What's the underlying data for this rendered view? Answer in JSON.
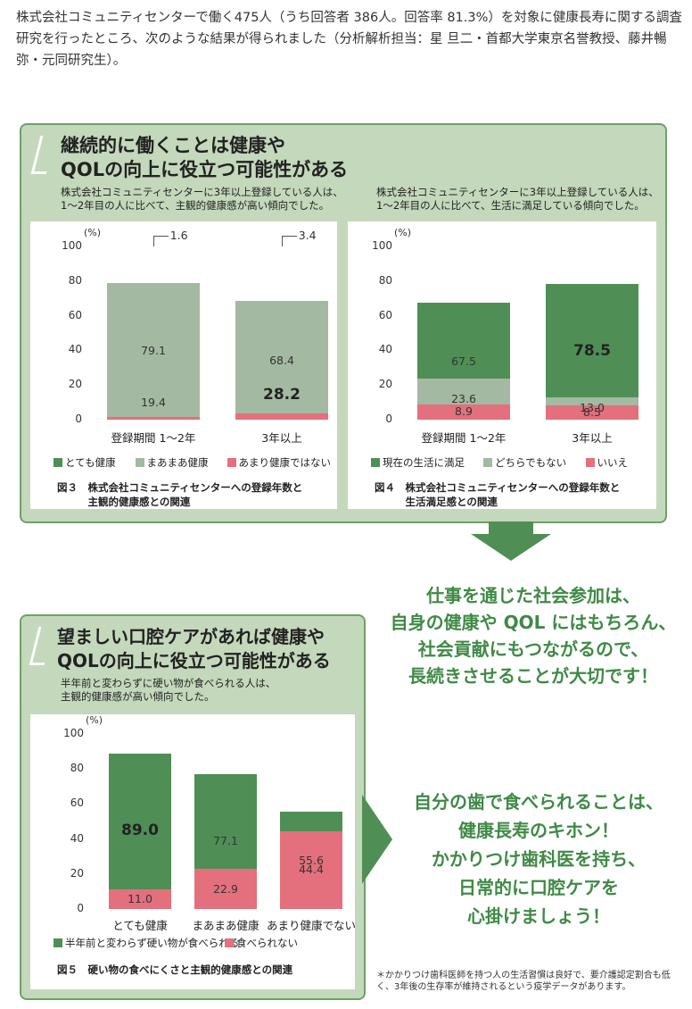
{
  "intro": "株式会社コミュニティセンターで働く475人（うち回答者 386人。回答率 81.3%）を対象に健康長寿に関する調査研究を行ったところ、次のような結果が得られました（分析解析担当：星 旦二・首都大学東京名誉教授、藤井暢弥・元同研究生）。",
  "panel1": {
    "heading_line1": "継続的に働くことは健康や",
    "heading_line2": "QOLの向上に役立つ可能性がある"
  },
  "panel2": {
    "heading_line1": "望ましい口腔ケアがあれば健康や",
    "heading_line2": "QOLの向上に役立つ可能性がある"
  },
  "colors": {
    "green": "#4f8f55",
    "gray": "#a4b9a1",
    "pink": "#e3707c",
    "accent_text": "#3f8a46"
  },
  "chart_data": [
    {
      "id": "fig3",
      "type": "bar",
      "stacked": true,
      "subtitle": "株式会社コミュニティセンターに3年以上登録している人は、\n1〜2年目の人に比べて、主観的健康感が高い傾向でした。",
      "caption": "図３　株式会社コミュニティセンターへの登録年数と\n　　　主観的健康感との関連",
      "unit": "(%)",
      "categories": [
        "登録期間 1〜2年",
        "3年以上"
      ],
      "ylim": [
        0,
        100
      ],
      "yticks": [
        0,
        20,
        40,
        60,
        80,
        100
      ],
      "series": [
        {
          "name": "とても健康",
          "color": "#4f8f55",
          "values": [
            19.4,
            28.2
          ]
        },
        {
          "name": "まあまあ健康",
          "color": "#a4b9a1",
          "values": [
            79.1,
            68.4
          ]
        },
        {
          "name": "あまり健康ではない",
          "color": "#e3707c",
          "values": [
            1.6,
            3.4
          ]
        }
      ],
      "emphasis": [
        [
          false,
          true
        ],
        [
          false,
          false
        ],
        [
          false,
          false
        ]
      ],
      "callout_series": 2
    },
    {
      "id": "fig4",
      "type": "bar",
      "stacked": true,
      "subtitle": "株式会社コミュニティセンターに3年以上登録している人は、\n1〜2年目の人に比べて、生活に満足している傾向でした。",
      "caption": "図４　株式会社コミュニティセンターへの登録年数と\n　　　生活満足感との関連",
      "unit": "(%)",
      "categories": [
        "登録期間 1〜2年",
        "3年以上"
      ],
      "ylim": [
        0,
        100
      ],
      "yticks": [
        0,
        20,
        40,
        60,
        80,
        100
      ],
      "series": [
        {
          "name": "現在の生活に満足",
          "color": "#4f8f55",
          "values": [
            67.5,
            78.5
          ]
        },
        {
          "name": "どちらでもない",
          "color": "#a4b9a1",
          "values": [
            23.6,
            13.0
          ]
        },
        {
          "name": "いいえ",
          "color": "#e3707c",
          "values": [
            8.9,
            8.5
          ]
        }
      ],
      "emphasis": [
        [
          false,
          true
        ],
        [
          false,
          false
        ],
        [
          false,
          false
        ]
      ],
      "callout_series": -1
    },
    {
      "id": "fig5",
      "type": "bar",
      "stacked": true,
      "subtitle": "半年前と変わらずに硬い物が食べられる人は、\n主観的健康感が高い傾向でした。",
      "caption": "図５　硬い物の食べにくさと主観的健康感との関連",
      "unit": "(%)",
      "categories": [
        "とても健康",
        "まあまあ健康",
        "あまり健康でない"
      ],
      "ylim": [
        0,
        100
      ],
      "yticks": [
        0,
        20,
        40,
        60,
        80,
        100
      ],
      "series": [
        {
          "name": "半年前と変わらず硬い物が食べられる",
          "color": "#4f8f55",
          "values": [
            89.0,
            77.1,
            55.6
          ]
        },
        {
          "name": "食べられない",
          "color": "#e3707c",
          "values": [
            11.0,
            22.9,
            44.4
          ]
        }
      ],
      "emphasis": [
        [
          true,
          false,
          false
        ],
        [
          false,
          false,
          false
        ]
      ],
      "callout_series": -1
    }
  ],
  "message1": [
    "仕事を通じた社会参加は、",
    "自身の健康や QOL にはもちろん、",
    "社会貢献にもつながるので、",
    "長続きさせることが大切です！"
  ],
  "message2": [
    "自分の歯で食べられることは、",
    "健康長寿のキホン！",
    "かかりつけ歯科医を持ち、",
    "日常的に口腔ケアを",
    "心掛けましょう！"
  ],
  "footnote": "＊かかりつけ歯科医師を持つ人の生活習慣は良好で、要介護認定割合も低く、3年後の生存率が維持されるという疫学データがあります。"
}
